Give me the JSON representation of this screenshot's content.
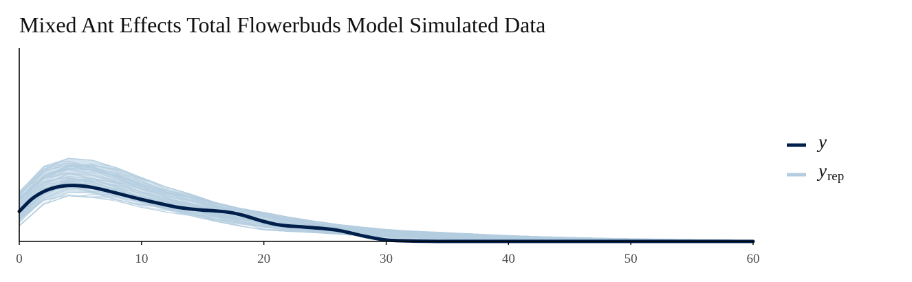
{
  "title": "Mixed Ant Effects Total Flowerbuds Model Simulated Data",
  "colors": {
    "y": "#011f4b",
    "yrep": "#b3cde0",
    "axis": "#000000",
    "ticktext": "#4d4d4d"
  },
  "chart_data": {
    "type": "line",
    "title": "Mixed Ant Effects Total Flowerbuds Model Simulated Data",
    "xlabel": "",
    "ylabel": "",
    "xlim": [
      0,
      60
    ],
    "ylim": [
      0,
      0.1
    ],
    "xticks": [
      "0",
      "10",
      "20",
      "30",
      "40",
      "50",
      "60"
    ],
    "grid": false,
    "legend": "right",
    "legend_entries": [
      {
        "key": "y",
        "main": "y",
        "sub": ""
      },
      {
        "key": "yrep",
        "main": "y",
        "sub": "rep"
      }
    ],
    "series": [
      {
        "name": "y",
        "role": "observed",
        "x": [
          0,
          1,
          2,
          3,
          4,
          5,
          6,
          7,
          8,
          9,
          10,
          11,
          12,
          13,
          14,
          15,
          16,
          17,
          18,
          19,
          20,
          21,
          22,
          23,
          24,
          25,
          26,
          27,
          28,
          29,
          30,
          31,
          32,
          33,
          35,
          40,
          45,
          50,
          55,
          60
        ],
        "y": [
          0.0155,
          0.0218,
          0.0258,
          0.028,
          0.0289,
          0.0288,
          0.0279,
          0.0265,
          0.0249,
          0.0233,
          0.0217,
          0.0203,
          0.0189,
          0.0176,
          0.0168,
          0.0162,
          0.0158,
          0.0152,
          0.014,
          0.0122,
          0.0103,
          0.0088,
          0.008,
          0.0076,
          0.0071,
          0.0066,
          0.0058,
          0.0045,
          0.003,
          0.0017,
          0.0008,
          0.0004,
          0.0002,
          0.0001,
          0.0,
          0.0,
          0.0,
          0.0,
          0.0,
          0.0
        ]
      },
      {
        "name": "y rep",
        "role": "replicates",
        "x": [
          0,
          2,
          4,
          6,
          8,
          10,
          12,
          14,
          16,
          18,
          20,
          22,
          24,
          26,
          28,
          30,
          32,
          34,
          36,
          38,
          40,
          42,
          44,
          46,
          48,
          50,
          52,
          54,
          56,
          58,
          60
        ],
        "lower": [
          0.008,
          0.0192,
          0.0236,
          0.0227,
          0.0208,
          0.0176,
          0.0152,
          0.0132,
          0.0105,
          0.008,
          0.006,
          0.0052,
          0.0046,
          0.0038,
          0.0029,
          0.0021,
          0.0016,
          0.0012,
          0.0009,
          0.0007,
          0.0006,
          0.0004,
          0.0003,
          0.0003,
          0.0002,
          0.0002,
          0.0001,
          0.0001,
          0.0001,
          0.0001,
          0.0001
        ],
        "upper": [
          0.0256,
          0.0388,
          0.043,
          0.042,
          0.038,
          0.033,
          0.0282,
          0.0245,
          0.0202,
          0.0172,
          0.015,
          0.0126,
          0.0106,
          0.0088,
          0.0074,
          0.0062,
          0.0054,
          0.0048,
          0.0042,
          0.0036,
          0.003,
          0.0026,
          0.0022,
          0.0019,
          0.0016,
          0.0014,
          0.0012,
          0.001,
          0.0008,
          0.0007,
          0.0006
        ]
      }
    ]
  }
}
